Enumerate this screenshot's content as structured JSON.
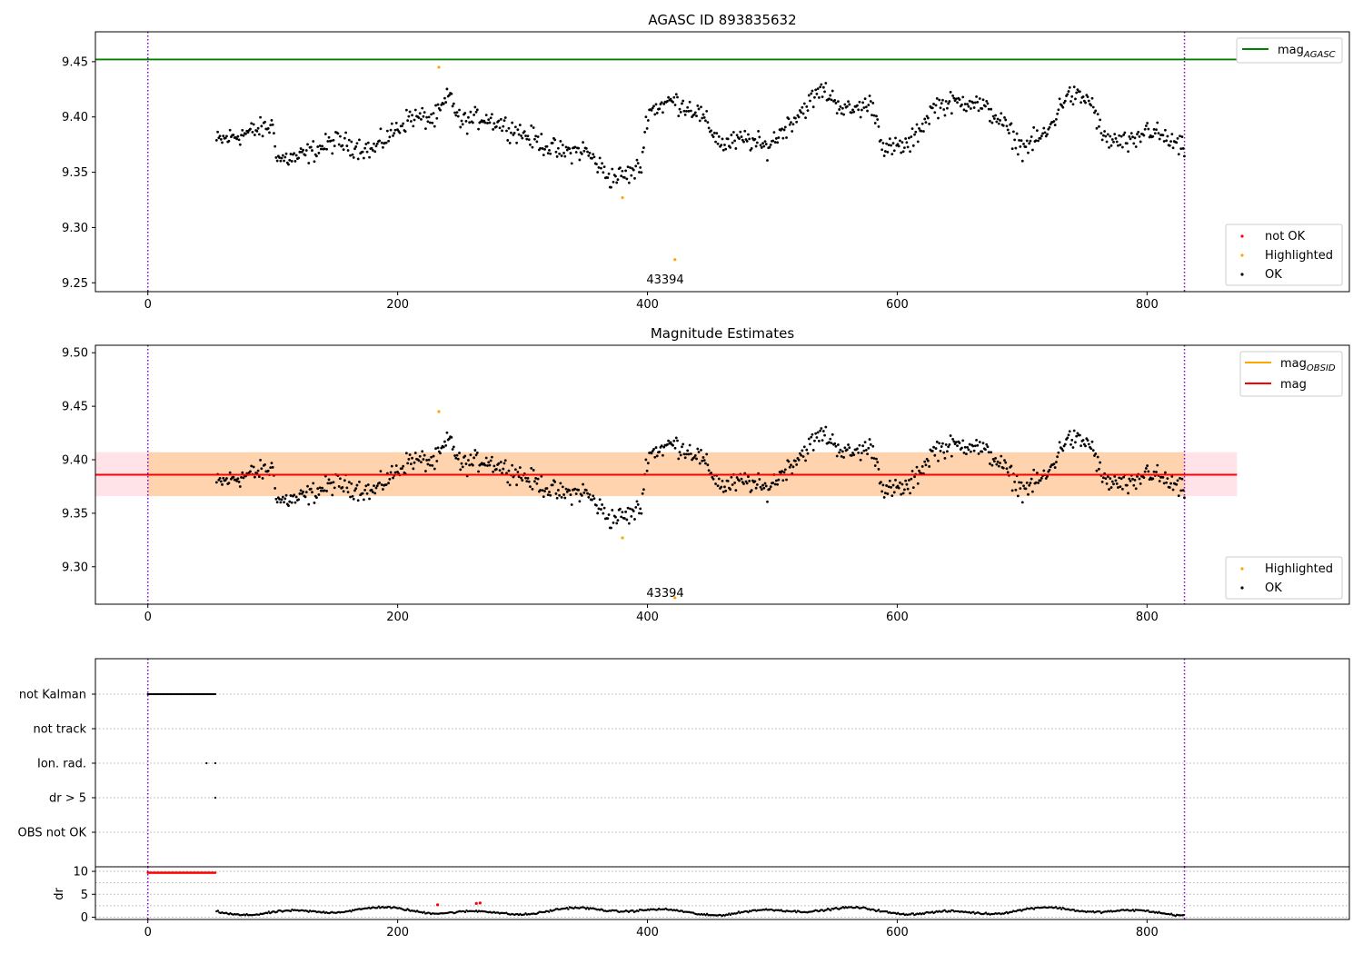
{
  "chart_data": [
    {
      "id": "agasc",
      "type": "scatter",
      "title": "AGASC ID 893835632",
      "xlim": [
        -42,
        962
      ],
      "ylim": [
        9.242,
        9.477
      ],
      "xticks": [
        0,
        200,
        400,
        600,
        800
      ],
      "yticks": [
        9.25,
        9.3,
        9.35,
        9.4,
        9.45
      ],
      "vlines": [
        0,
        830
      ],
      "reference_line": {
        "name": "mag_AGASC",
        "value": 9.452,
        "x_range": [
          -42,
          872
        ],
        "color": "#008000"
      },
      "legend_top": {
        "entries": [
          {
            "label": "mag",
            "sub": "AGASC",
            "color": "#008000"
          }
        ]
      },
      "legend_bottom": {
        "entries": [
          {
            "label": "not OK",
            "color": "#ff0000"
          },
          {
            "label": "Highlighted",
            "color": "#ffa500"
          },
          {
            "label": "OK",
            "color": "#000000"
          }
        ]
      },
      "highlighted_points": [
        {
          "x": 233,
          "y": 9.445
        },
        {
          "x": 380,
          "y": 9.327
        },
        {
          "x": 422,
          "y": 9.271
        }
      ],
      "annotations": [
        {
          "text": "43394",
          "x": 415,
          "y": 9.245
        }
      ]
    },
    {
      "id": "estimates",
      "type": "scatter",
      "title": "Magnitude Estimates",
      "xlim": [
        -42,
        962
      ],
      "ylim": [
        9.265,
        9.507
      ],
      "xticks": [
        0,
        200,
        400,
        600,
        800
      ],
      "yticks": [
        9.3,
        9.35,
        9.4,
        9.45,
        9.5
      ],
      "vlines": [
        0,
        830
      ],
      "mag_line": {
        "value": 9.386,
        "x_range": [
          -42,
          872
        ],
        "color": "#ff0000"
      },
      "pink_band": {
        "lo": 9.366,
        "hi": 9.407,
        "x_range": [
          -42,
          872
        ],
        "color": "#ffc0cb"
      },
      "orange_band": {
        "lo": 9.366,
        "hi": 9.407,
        "x_range": [
          0,
          830
        ],
        "color": "#ffa500"
      },
      "legend_top": {
        "entries": [
          {
            "label": "mag",
            "sub": "OBSID",
            "color": "#ffa500"
          },
          {
            "label": "mag",
            "sub": "",
            "color": "#ff0000"
          }
        ]
      },
      "legend_bottom": {
        "entries": [
          {
            "label": "Highlighted",
            "color": "#ffa500"
          },
          {
            "label": "OK",
            "color": "#000000"
          }
        ]
      },
      "highlighted_points": [
        {
          "x": 233,
          "y": 9.445
        },
        {
          "x": 380,
          "y": 9.327
        },
        {
          "x": 422,
          "y": 9.271
        }
      ],
      "annotations": [
        {
          "text": "43394",
          "x": 415,
          "y": 9.27
        }
      ]
    },
    {
      "id": "flags",
      "type": "scatter",
      "xlim": [
        -42,
        962
      ],
      "xticks": [
        0,
        200,
        400,
        600,
        800
      ],
      "vlines": [
        0,
        830
      ],
      "flag_rows": [
        "not Kalman",
        "not track",
        "Ion. rad.",
        "dr > 5",
        "OBS not OK"
      ],
      "flag_points": [
        {
          "row": "not Kalman",
          "x_start": 0,
          "x_end": 54,
          "step": 1
        },
        {
          "row": "Ion. rad.",
          "x_values": [
            47,
            54
          ]
        },
        {
          "row": "dr > 5",
          "x_values": [
            54
          ]
        }
      ]
    },
    {
      "id": "dr",
      "type": "scatter",
      "ylabel": "dr",
      "xlim": [
        -42,
        962
      ],
      "ylim": [
        -0.5,
        11
      ],
      "xticks": [
        0,
        200,
        400,
        600,
        800
      ],
      "yticks": [
        0,
        5,
        10
      ],
      "vlines": [
        0,
        830
      ],
      "saturated_points": {
        "x_start": 0,
        "x_end": 54,
        "y": 9.7,
        "color": "#ff0000"
      },
      "red_points": [
        {
          "x": 232,
          "y": 2.7
        },
        {
          "x": 263,
          "y": 3.0
        },
        {
          "x": 266,
          "y": 3.1
        }
      ]
    }
  ],
  "series_info": {
    "mag_points_x_range": [
      55,
      830
    ],
    "note": "OK points scatter between approx 9.34 and 9.44"
  }
}
